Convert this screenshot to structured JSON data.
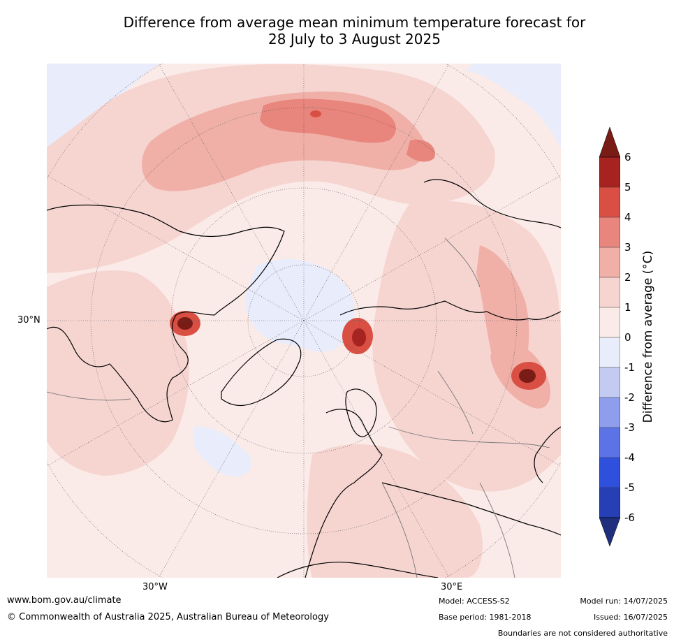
{
  "title_line1": "Difference from average mean minimum temperature forecast for",
  "title_line2": "28 July to 3 August 2025",
  "map": {
    "lat_label": "30°N",
    "lon_labels": [
      "30°W",
      "30°E"
    ]
  },
  "colorbar": {
    "label": "Difference from average (°C)",
    "ticks": [
      "6",
      "5",
      "4",
      "3",
      "2",
      "1",
      "0",
      "-1",
      "-2",
      "-3",
      "-4",
      "-5",
      "-6"
    ],
    "colors": {
      "over": "#7a1c16",
      "5_6": "#a6231f",
      "4_5": "#d94f43",
      "3_4": "#e8857c",
      "2_3": "#f0b0a8",
      "1_2": "#f6d5d1",
      "0_1": "#fbebe8",
      "-1_0": "#e8ecfb",
      "-2_-1": "#c3cbf2",
      "-3_-2": "#8e9dec",
      "-4_-3": "#5b73e4",
      "-5_-4": "#2f50dc",
      "-6_-5": "#263fb4",
      "under": "#1f2f7e"
    }
  },
  "footer": {
    "website": "www.bom.gov.au/climate",
    "copyright": "© Commonwealth of Australia 2025, Australian Bureau of Meteorology",
    "model": "Model: ACCESS-S2",
    "base_period": "Base period: 1981-2018",
    "model_run": "Model run: 14/07/2025",
    "issued": "Issued: 16/07/2025",
    "disclaimer": "Boundaries are not considered authoritative"
  }
}
